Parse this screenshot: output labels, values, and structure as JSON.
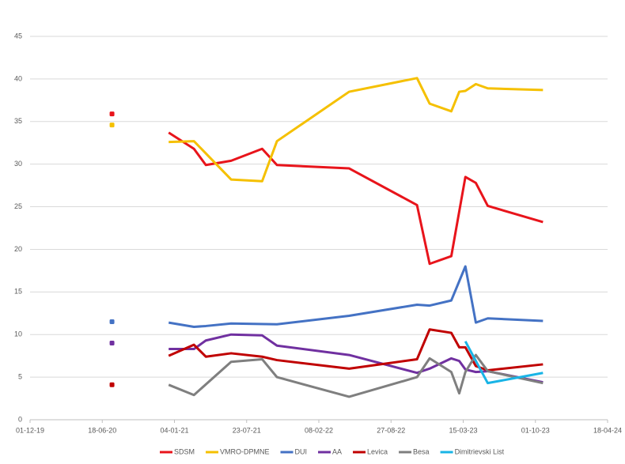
{
  "chart_data": {
    "type": "line",
    "xlim": [
      "2019-12-01",
      "2024-04-18"
    ],
    "xticks": [
      {
        "value": "2019-12-01",
        "label": "01-12-19"
      },
      {
        "value": "2020-06-18",
        "label": "18-06-20"
      },
      {
        "value": "2021-01-04",
        "label": "04-01-21"
      },
      {
        "value": "2021-07-23",
        "label": "23-07-21"
      },
      {
        "value": "2022-02-08",
        "label": "08-02-22"
      },
      {
        "value": "2022-08-27",
        "label": "27-08-22"
      },
      {
        "value": "2023-03-15",
        "label": "15-03-23"
      },
      {
        "value": "2023-10-01",
        "label": "01-10-23"
      },
      {
        "value": "2024-04-18",
        "label": "18-04-24"
      }
    ],
    "ylim": [
      0,
      45
    ],
    "yticks": [
      0,
      5,
      10,
      15,
      20,
      25,
      30,
      35,
      40,
      45
    ],
    "grid": true,
    "legend": "bottom",
    "series": [
      {
        "name": "SDSM",
        "color": "#e8141b",
        "x": [
          "2020-12-19",
          "2021-02-27",
          "2021-04-01",
          "2021-06-10",
          "2021-09-04",
          "2021-10-15",
          "2022-05-03",
          "2022-11-07",
          "2022-12-12",
          "2023-02-10",
          "2023-03-21",
          "2023-04-19",
          "2023-05-22",
          "2023-10-22"
        ],
        "values": [
          33.7,
          31.8,
          29.9,
          30.4,
          31.8,
          29.9,
          29.5,
          25.2,
          18.3,
          19.2,
          28.5,
          27.8,
          25.1,
          23.2
        ],
        "points": {
          "x": [
            "2020-07-15"
          ],
          "values": [
            35.9
          ]
        }
      },
      {
        "name": "VMRO-DPMNE",
        "color": "#f5c000",
        "x": [
          "2020-12-19",
          "2021-02-27",
          "2021-06-10",
          "2021-09-04",
          "2021-10-15",
          "2022-05-03",
          "2022-11-07",
          "2022-12-12",
          "2023-02-10",
          "2023-03-04",
          "2023-03-21",
          "2023-04-19",
          "2023-05-22",
          "2023-10-22"
        ],
        "values": [
          32.6,
          32.7,
          28.2,
          28.0,
          32.7,
          38.5,
          40.1,
          37.1,
          36.2,
          38.5,
          38.6,
          39.4,
          38.9,
          38.7
        ],
        "points": {
          "x": [
            "2020-07-15"
          ],
          "values": [
            34.6
          ]
        }
      },
      {
        "name": "DUI",
        "color": "#4472c4",
        "x": [
          "2020-12-19",
          "2021-02-27",
          "2021-04-01",
          "2021-06-10",
          "2021-10-15",
          "2022-05-03",
          "2022-11-07",
          "2022-12-12",
          "2023-02-10",
          "2023-03-21",
          "2023-04-19",
          "2023-05-22",
          "2023-10-22"
        ],
        "values": [
          11.4,
          10.9,
          11.0,
          11.3,
          11.2,
          12.2,
          13.5,
          13.4,
          14.0,
          18.0,
          11.4,
          11.9,
          11.6
        ],
        "points": {
          "x": [
            "2020-07-15"
          ],
          "values": [
            11.5
          ]
        }
      },
      {
        "name": "AA",
        "color": "#7030a0",
        "x": [
          "2020-12-19",
          "2021-02-27",
          "2021-04-01",
          "2021-06-10",
          "2021-09-04",
          "2021-10-15",
          "2022-05-03",
          "2022-11-07",
          "2022-12-12",
          "2023-02-10",
          "2023-03-04",
          "2023-03-21",
          "2023-04-19",
          "2023-05-22",
          "2023-10-22"
        ],
        "values": [
          8.3,
          8.3,
          9.3,
          10.0,
          9.9,
          8.7,
          7.6,
          5.5,
          6.0,
          7.2,
          6.9,
          5.9,
          5.6,
          5.7,
          4.4
        ],
        "points": {
          "x": [
            "2020-07-15"
          ],
          "values": [
            9.0
          ]
        }
      },
      {
        "name": "Levica",
        "color": "#c00000",
        "x": [
          "2020-12-19",
          "2021-02-27",
          "2021-04-01",
          "2021-06-10",
          "2021-09-04",
          "2021-10-15",
          "2022-05-03",
          "2022-11-07",
          "2022-12-12",
          "2023-02-10",
          "2023-03-04",
          "2023-03-21",
          "2023-04-19",
          "2023-05-22",
          "2023-10-22"
        ],
        "values": [
          7.5,
          8.8,
          7.4,
          7.8,
          7.4,
          7.0,
          6.0,
          7.1,
          10.6,
          10.2,
          8.5,
          8.5,
          6.3,
          5.8,
          6.5
        ],
        "points": {
          "x": [
            "2020-07-15"
          ],
          "values": [
            4.1
          ]
        }
      },
      {
        "name": "Besa",
        "color": "#7f7f7f",
        "x": [
          "2020-12-19",
          "2021-02-27",
          "2021-06-10",
          "2021-09-04",
          "2021-10-15",
          "2022-05-03",
          "2022-11-07",
          "2022-12-12",
          "2023-02-10",
          "2023-03-04",
          "2023-03-21",
          "2023-04-19",
          "2023-05-22",
          "2023-10-22"
        ],
        "values": [
          4.1,
          2.9,
          6.8,
          7.1,
          5.0,
          2.7,
          5.0,
          7.2,
          5.6,
          3.1,
          5.6,
          7.6,
          5.7,
          4.3
        ]
      },
      {
        "name": "Dimitrievski List",
        "color": "#19b4e6",
        "x": [
          "2023-03-21",
          "2023-05-22",
          "2023-10-22"
        ],
        "values": [
          9.2,
          4.3,
          5.5
        ]
      }
    ]
  }
}
